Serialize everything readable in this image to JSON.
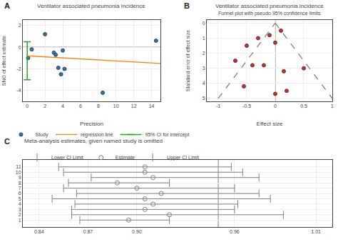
{
  "chart_data": [
    {
      "type": "scatter",
      "title": "Ventilator associated pneumonia incidence",
      "xlabel": "Precision",
      "ylabel": "SNO of effect estimate",
      "annotations": [
        "A"
      ],
      "xlim": [
        -0.5,
        15
      ],
      "ylim": [
        -5,
        2.5
      ],
      "xticks": [
        0,
        2,
        4,
        6,
        8,
        10,
        12,
        14
      ],
      "yticks": [
        -4,
        -2,
        0,
        2
      ],
      "grid": true,
      "legend": "bottom",
      "series": [
        {
          "name": "Study",
          "type": "scatter",
          "marker": "circle",
          "x": [
            0.5,
            2.0,
            3.0,
            3.2,
            3.5,
            3.8,
            4.0,
            4.2,
            8.5,
            14.5,
            0.1
          ],
          "values": [
            -0.2,
            1.2,
            -0.5,
            -0.7,
            -1.9,
            -2.5,
            -0.3,
            -2.0,
            -4.2,
            0.6,
            -1.0
          ]
        },
        {
          "name": "regression line",
          "type": "line",
          "x": [
            0,
            15
          ],
          "values": [
            -0.8,
            -1.5
          ]
        },
        {
          "name": "95% CI for intercept",
          "type": "errorbar",
          "x": [
            0.0
          ],
          "low": [
            -3.0
          ],
          "high": [
            0.5
          ]
        },
        {
          "type": "hline",
          "values": [
            0.0
          ],
          "color": "gray"
        }
      ]
    },
    {
      "type": "scatter",
      "title": "Ventilator associated pneumonia incidence",
      "subtitle": "Funnel plot with pseudo 95% confidence limits",
      "xlabel": "Effect size",
      "ylabel": "Standard error of effect size",
      "annotations": [
        "B"
      ],
      "xlim": [
        -1.2,
        1.0
      ],
      "ylim": [
        5.2,
        -0.2
      ],
      "xticks": [
        -1.0,
        -0.5,
        0.0,
        0.5,
        1.0
      ],
      "yticks": [
        0,
        1,
        2,
        3,
        4,
        5
      ],
      "grid": true,
      "series": [
        {
          "type": "scatter",
          "marker": "circle",
          "x": [
            -0.7,
            -0.5,
            -0.4,
            -0.3,
            -0.2,
            -0.1,
            0.0,
            0.1,
            0.15,
            0.2,
            0.5,
            -0.55,
            0.0
          ],
          "values": [
            2.5,
            1.5,
            2.8,
            1.0,
            2.8,
            0.8,
            4.7,
            0.5,
            3.2,
            4.5,
            3.0,
            4.2,
            1.3
          ]
        },
        {
          "type": "line",
          "line_style": "dashed",
          "color": "gray",
          "x": [
            -1.0,
            0.0
          ],
          "values": [
            5.0,
            0.0
          ]
        },
        {
          "type": "line",
          "line_style": "dashed",
          "color": "gray",
          "x": [
            0.0,
            1.0
          ],
          "values": [
            0.0,
            5.0
          ]
        },
        {
          "type": "vline",
          "x": [
            0.0
          ],
          "color": "gray"
        }
      ]
    },
    {
      "type": "forest",
      "title": "Meta-analysis estimates, given named study is omitted",
      "annotations": [
        "C"
      ],
      "orientation": "horizontal",
      "categories": [
        1,
        2,
        3,
        4,
        5,
        6,
        7,
        8,
        9,
        10,
        11
      ],
      "xlim": [
        0.83,
        1.02
      ],
      "xticks": [
        0.84,
        0.87,
        {
          "value": 0.9,
          "label": "0.90"
        },
        0.96,
        1.01
      ],
      "grid": true,
      "legend": "top left",
      "series": [
        {
          "name": "Lower CI Limit",
          "marker": "line",
          "color": "gray",
          "values": [
            0.865,
            0.86,
            0.86,
            0.862,
            0.848,
            0.863,
            0.855,
            0.858,
            0.872,
            0.855,
            0.852
          ]
        },
        {
          "name": "Estimate",
          "marker": "circle-open",
          "color": "gray",
          "values": [
            0.895,
            0.92,
            0.905,
            0.91,
            0.905,
            0.915,
            0.9,
            0.888,
            0.91,
            0.905,
            0.905
          ]
        },
        {
          "name": "Upper CI Limit",
          "marker": "line",
          "color": "gray",
          "values": [
            0.92,
            0.99,
            0.96,
            0.962,
            0.982,
            0.975,
            0.96,
            0.92,
            0.975,
            0.965,
            0.958
          ]
        },
        {
          "type": "vline",
          "x": [
            0.95
          ],
          "color": "gray"
        }
      ]
    }
  ]
}
